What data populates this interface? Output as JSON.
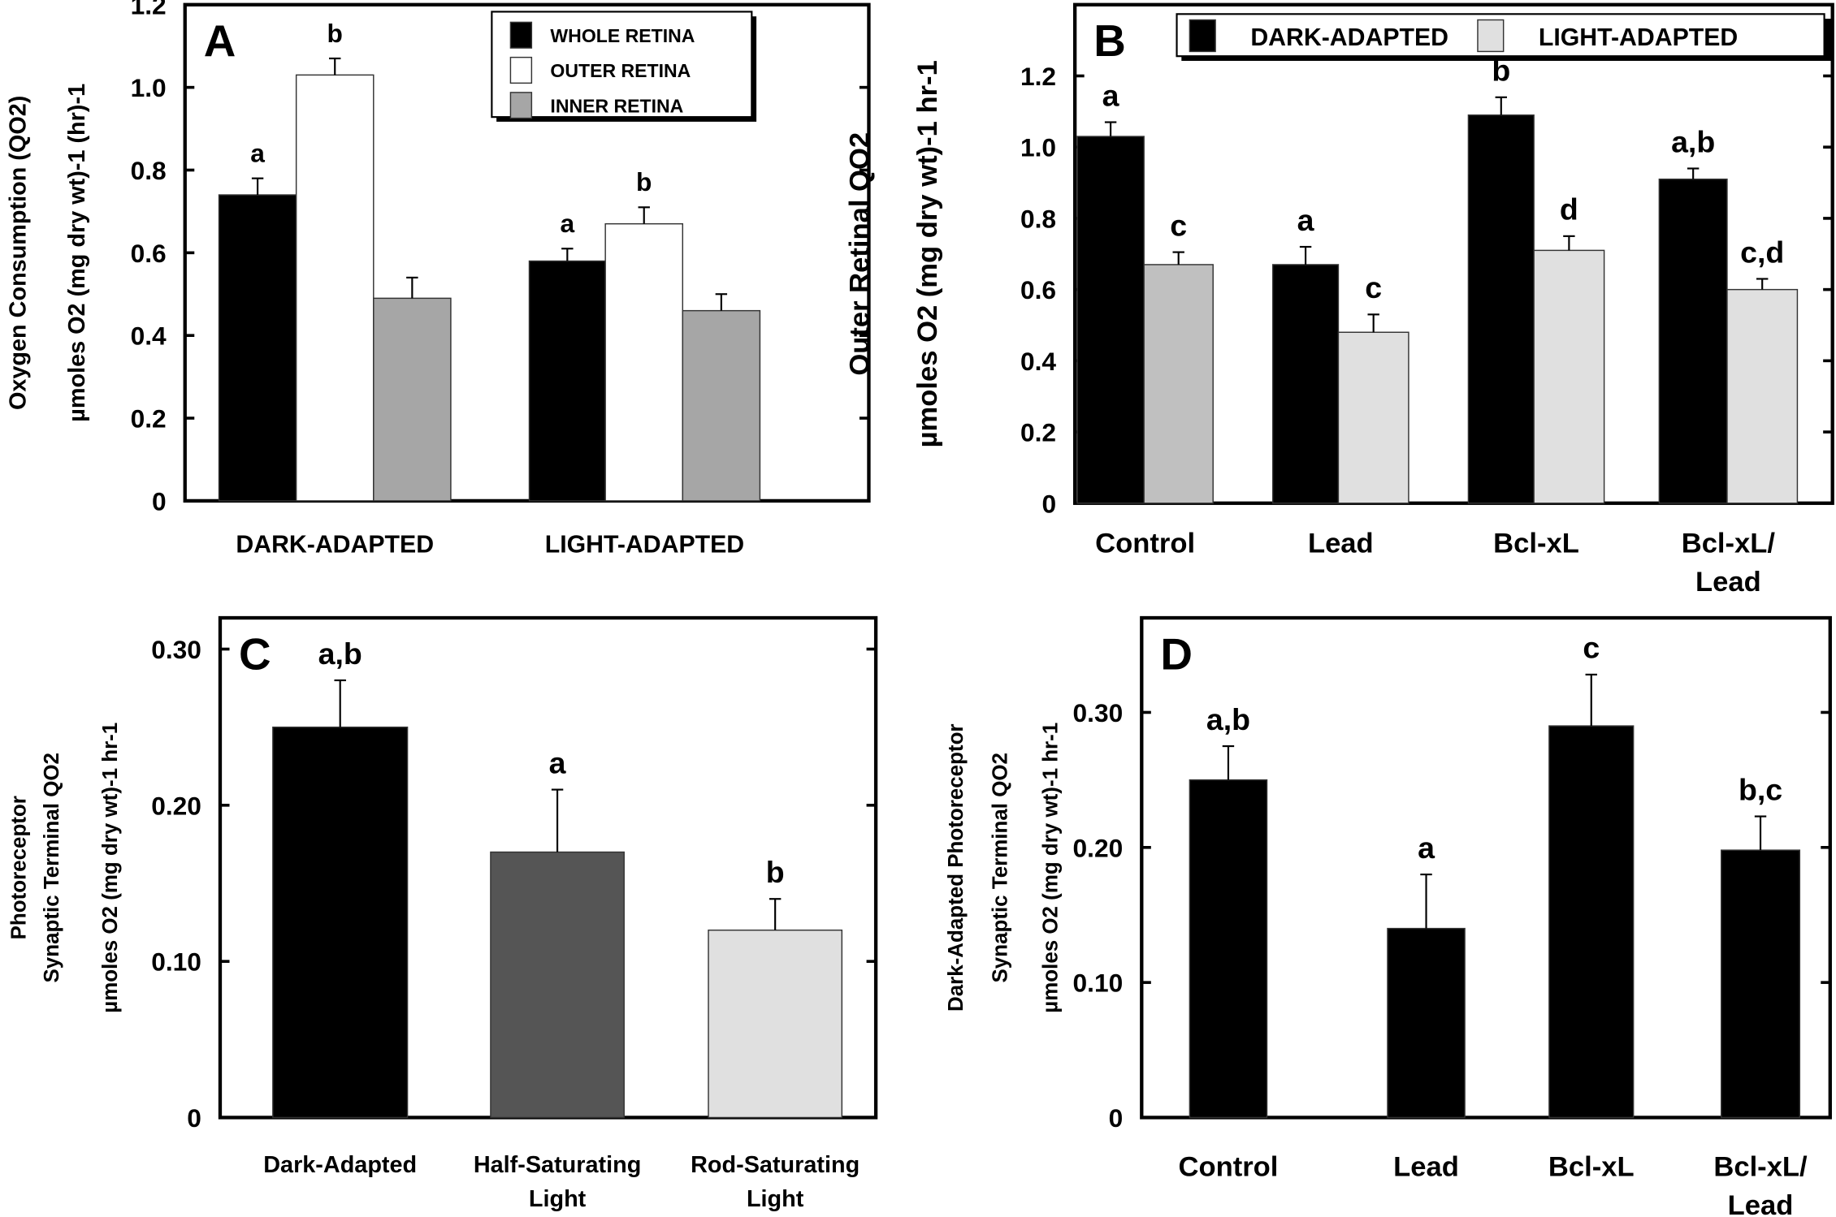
{
  "chart_data": [
    {
      "type": "bar",
      "panel_label": "A",
      "ylabel_line1": "Oxygen Consumption (QO2)",
      "ylabel_line2": "µmoles O2 (mg dry wt)-1 (hr)-1",
      "ylim": [
        0,
        1.2
      ],
      "yticks": [
        "0",
        "0.2",
        "0.4",
        "0.6",
        "0.8",
        "1.0",
        "1.2"
      ],
      "categories": [
        "DARK-ADAPTED",
        "LIGHT-ADAPTED"
      ],
      "legend_position": "top-right",
      "series": [
        {
          "name": "WHOLE RETINA",
          "color": "#000000",
          "values": [
            0.74,
            0.58
          ],
          "error_top": [
            0.78,
            0.61
          ],
          "sig": [
            "a",
            "a"
          ]
        },
        {
          "name": "OUTER RETINA",
          "color": "#ffffff",
          "values": [
            1.03,
            0.67
          ],
          "error_top": [
            1.07,
            0.71
          ],
          "sig": [
            "b",
            "b"
          ]
        },
        {
          "name": "INNER RETINA",
          "color": "#a6a6a6",
          "values": [
            0.49,
            0.46
          ],
          "error_top": [
            0.54,
            0.5
          ],
          "sig": [
            "",
            ""
          ]
        }
      ]
    },
    {
      "type": "bar",
      "panel_label": "B",
      "ylabel_line1": "Outer Retinal QO2",
      "ylabel_line2": "µmoles O2 (mg dry wt)-1 hr-1",
      "ylim": [
        0,
        1.4
      ],
      "yticks": [
        "0",
        "0.2",
        "0.4",
        "0.6",
        "0.8",
        "1.0",
        "1.2"
      ],
      "categories": [
        "Control",
        "Lead",
        "Bcl-xL",
        "Bcl-xL/\nLead"
      ],
      "legend_position": "top",
      "series": [
        {
          "name": "DARK-ADAPTED",
          "color": "#000000",
          "values": [
            1.03,
            0.67,
            1.09,
            0.91
          ],
          "error_top": [
            1.07,
            0.72,
            1.14,
            0.94
          ],
          "sig": [
            "a",
            "a",
            "b",
            "a,b"
          ]
        },
        {
          "name": "LIGHT-ADAPTED",
          "color": "#e0e0e0",
          "values": [
            0.67,
            0.48,
            0.71,
            0.6
          ],
          "error_top": [
            0.705,
            0.53,
            0.75,
            0.63
          ],
          "sig": [
            "c",
            "c",
            "d",
            "c,d"
          ],
          "colors": [
            "#c0c0c0",
            "#e0e0e0",
            "#e0e0e0",
            "#e0e0e0"
          ]
        }
      ]
    },
    {
      "type": "bar",
      "panel_label": "C",
      "ylabel_line1": "Photoreceptor",
      "ylabel_line2": "Synaptic Terminal QO2",
      "ylabel_line3": "µmoles O2 (mg dry wt)-1 hr-1",
      "ylim": [
        0,
        0.32
      ],
      "yticks": [
        "0",
        "0.10",
        "0.20",
        "0.30"
      ],
      "categories": [
        "Dark-Adapted",
        "Half-Saturating\nLight",
        "Rod-Saturating\nLight"
      ],
      "series": [
        {
          "values": [
            0.25,
            0.17,
            0.12
          ],
          "error_top": [
            0.28,
            0.21,
            0.14
          ],
          "sig": [
            "a,b",
            "a",
            "b"
          ],
          "colors": [
            "#000000",
            "#555555",
            "#e0e0e0"
          ]
        }
      ]
    },
    {
      "type": "bar",
      "panel_label": "D",
      "ylabel_line1": "Dark-Adapted Photoreceptor",
      "ylabel_line2": "Synaptic Terminal QO2",
      "ylabel_line3": "µmoles O2 (mg dry wt)-1 hr-1",
      "ylim": [
        0,
        0.37
      ],
      "yticks": [
        "0",
        "0.10",
        "0.20",
        "0.30"
      ],
      "categories": [
        "Control",
        "Lead",
        "Bcl-xL",
        "Bcl-xL/\nLead"
      ],
      "series": [
        {
          "values": [
            0.25,
            0.14,
            0.29,
            0.198
          ],
          "error_top": [
            0.275,
            0.18,
            0.328,
            0.223
          ],
          "sig": [
            "a,b",
            "a",
            "c",
            "b,c"
          ],
          "colors": [
            "#000000",
            "#000000",
            "#000000",
            "#000000"
          ]
        }
      ]
    }
  ]
}
